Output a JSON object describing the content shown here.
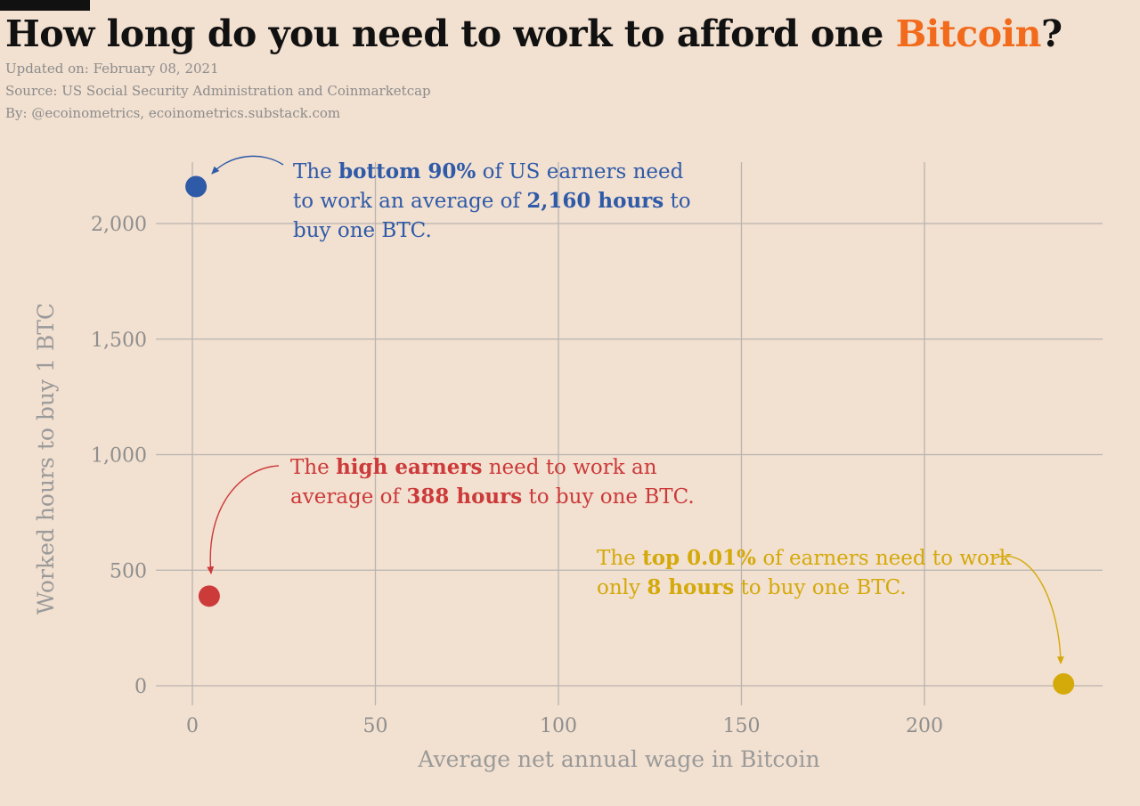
{
  "title": {
    "prefix": "How long do you need to work to afford one ",
    "accent": "Bitcoin",
    "suffix": "?"
  },
  "meta": {
    "updated": "Updated on: February 08, 2021",
    "source": "Source: US Social Security Administration and Coinmarketcap",
    "by": "By: @ecoinometrics, ecoinometrics.substack.com"
  },
  "colors": {
    "background": "#f2e0d0",
    "accent": "#f26a1b",
    "blue": "#2e5aa8",
    "red": "#cc3a3a",
    "gold": "#d4a90a",
    "grid": "#b9b4b0"
  },
  "chart_data": {
    "type": "scatter",
    "xlabel": "Average net annual wage in Bitcoin",
    "ylabel": "Worked hours to buy 1 BTC",
    "xlim": [
      -10,
      250
    ],
    "ylim": [
      -110,
      2270
    ],
    "xticks": [
      0,
      50,
      100,
      150,
      200
    ],
    "xtick_labels": [
      "0",
      "50",
      "100",
      "150",
      "200"
    ],
    "yticks": [
      0,
      500,
      1000,
      1500,
      2000
    ],
    "ytick_labels": [
      "0",
      "500",
      "1,000",
      "1,500",
      "2,000"
    ],
    "grid": true,
    "points": [
      {
        "group": "bottom-90",
        "x": 1,
        "y": 2160,
        "color": "#2e5aa8"
      },
      {
        "group": "high-earners",
        "x": 4.6,
        "y": 388,
        "color": "#cc3a3a"
      },
      {
        "group": "top-0.01",
        "x": 238,
        "y": 8,
        "color": "#d4a90a"
      }
    ],
    "annotations": [
      {
        "group": "bottom-90",
        "color": "#2e5aa8",
        "lines": [
          [
            {
              "t": "The ",
              "b": false
            },
            {
              "t": "bottom 90%",
              "b": true
            },
            {
              "t": " of US earners need",
              "b": false
            }
          ],
          [
            {
              "t": "to work an average of ",
              "b": false
            },
            {
              "t": "2,160 hours",
              "b": true
            },
            {
              "t": " to",
              "b": false
            }
          ],
          [
            {
              "t": "buy one BTC.",
              "b": false
            }
          ]
        ]
      },
      {
        "group": "high-earners",
        "color": "#cc3a3a",
        "lines": [
          [
            {
              "t": "The ",
              "b": false
            },
            {
              "t": "high earners",
              "b": true
            },
            {
              "t": " need to work an",
              "b": false
            }
          ],
          [
            {
              "t": "average of ",
              "b": false
            },
            {
              "t": "388 hours",
              "b": true
            },
            {
              "t": " to buy one BTC.",
              "b": false
            }
          ]
        ]
      },
      {
        "group": "top-0.01",
        "color": "#d4a90a",
        "lines": [
          [
            {
              "t": "The ",
              "b": false
            },
            {
              "t": "top 0.01%",
              "b": true
            },
            {
              "t": " of earners need to work",
              "b": false
            }
          ],
          [
            {
              "t": "only ",
              "b": false
            },
            {
              "t": "8 hours",
              "b": true
            },
            {
              "t": " to buy one BTC.",
              "b": false
            }
          ]
        ]
      }
    ]
  }
}
